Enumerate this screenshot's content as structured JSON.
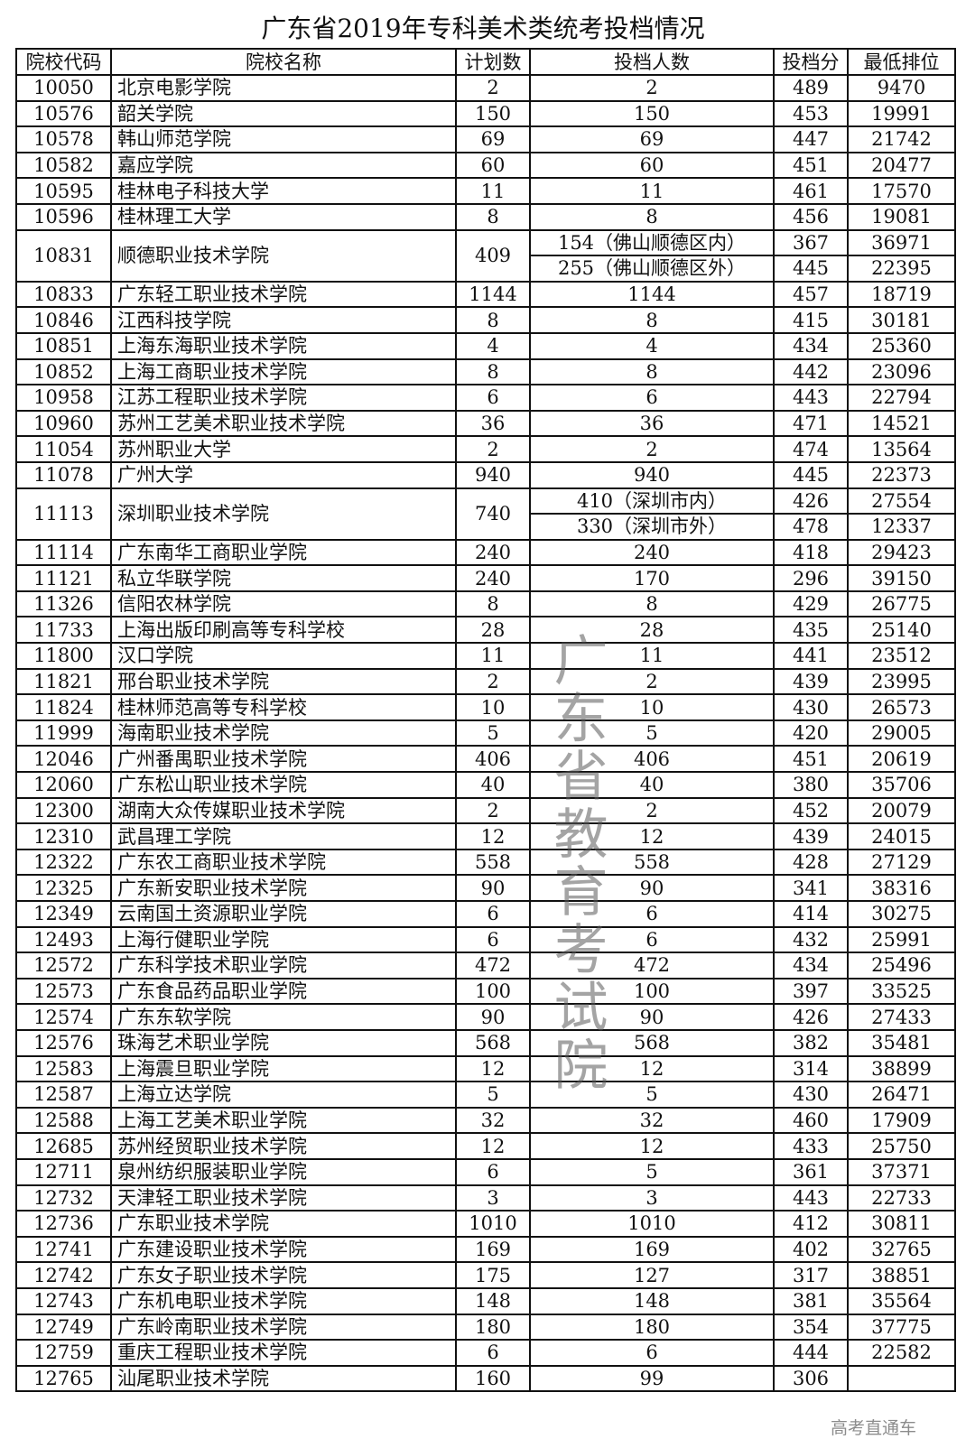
{
  "title": "广东省2019年专科美术类统考投档情况",
  "headers": [
    "院校代码",
    "院校名称",
    "计划数",
    "投档人数",
    "投档分",
    "最低排位"
  ],
  "rows": [
    {
      "code": "10050",
      "name": "北京电影学院",
      "plan": "2",
      "subs": [
        {
          "admit": "2",
          "score": "489",
          "rank": "9470"
        }
      ]
    },
    {
      "code": "10576",
      "name": "韶关学院",
      "plan": "150",
      "subs": [
        {
          "admit": "150",
          "score": "453",
          "rank": "19991"
        }
      ]
    },
    {
      "code": "10578",
      "name": "韩山师范学院",
      "plan": "69",
      "subs": [
        {
          "admit": "69",
          "score": "447",
          "rank": "21742"
        }
      ]
    },
    {
      "code": "10582",
      "name": "嘉应学院",
      "plan": "60",
      "subs": [
        {
          "admit": "60",
          "score": "451",
          "rank": "20477"
        }
      ]
    },
    {
      "code": "10595",
      "name": "桂林电子科技大学",
      "plan": "11",
      "subs": [
        {
          "admit": "11",
          "score": "461",
          "rank": "17570"
        }
      ]
    },
    {
      "code": "10596",
      "name": "桂林理工大学",
      "plan": "8",
      "subs": [
        {
          "admit": "8",
          "score": "456",
          "rank": "19081"
        }
      ]
    },
    {
      "code": "10831",
      "name": "顺德职业技术学院",
      "plan": "409",
      "subs": [
        {
          "admit": "154（佛山顺德区内）",
          "score": "367",
          "rank": "36971"
        },
        {
          "admit": "255（佛山顺德区外）",
          "score": "445",
          "rank": "22395"
        }
      ]
    },
    {
      "code": "10833",
      "name": "广东轻工职业技术学院",
      "plan": "1144",
      "subs": [
        {
          "admit": "1144",
          "score": "457",
          "rank": "18719"
        }
      ]
    },
    {
      "code": "10846",
      "name": "江西科技学院",
      "plan": "8",
      "subs": [
        {
          "admit": "8",
          "score": "415",
          "rank": "30181"
        }
      ]
    },
    {
      "code": "10851",
      "name": "上海东海职业技术学院",
      "plan": "4",
      "subs": [
        {
          "admit": "4",
          "score": "434",
          "rank": "25360"
        }
      ]
    },
    {
      "code": "10852",
      "name": "上海工商职业技术学院",
      "plan": "8",
      "subs": [
        {
          "admit": "8",
          "score": "442",
          "rank": "23096"
        }
      ]
    },
    {
      "code": "10958",
      "name": "江苏工程职业技术学院",
      "plan": "6",
      "subs": [
        {
          "admit": "6",
          "score": "443",
          "rank": "22794"
        }
      ]
    },
    {
      "code": "10960",
      "name": "苏州工艺美术职业技术学院",
      "plan": "36",
      "subs": [
        {
          "admit": "36",
          "score": "471",
          "rank": "14521"
        }
      ]
    },
    {
      "code": "11054",
      "name": "苏州职业大学",
      "plan": "2",
      "subs": [
        {
          "admit": "2",
          "score": "474",
          "rank": "13564"
        }
      ]
    },
    {
      "code": "11078",
      "name": "广州大学",
      "plan": "940",
      "subs": [
        {
          "admit": "940",
          "score": "445",
          "rank": "22373"
        }
      ]
    },
    {
      "code": "11113",
      "name": "深圳职业技术学院",
      "plan": "740",
      "subs": [
        {
          "admit": "410（深圳市内）",
          "score": "426",
          "rank": "27554"
        },
        {
          "admit": "330（深圳市外）",
          "score": "478",
          "rank": "12337"
        }
      ]
    },
    {
      "code": "11114",
      "name": "广东南华工商职业学院",
      "plan": "240",
      "subs": [
        {
          "admit": "240",
          "score": "418",
          "rank": "29423"
        }
      ]
    },
    {
      "code": "11121",
      "name": "私立华联学院",
      "plan": "240",
      "subs": [
        {
          "admit": "170",
          "score": "296",
          "rank": "39150"
        }
      ]
    },
    {
      "code": "11326",
      "name": "信阳农林学院",
      "plan": "8",
      "subs": [
        {
          "admit": "8",
          "score": "429",
          "rank": "26775"
        }
      ]
    },
    {
      "code": "11733",
      "name": "上海出版印刷高等专科学校",
      "plan": "28",
      "subs": [
        {
          "admit": "28",
          "score": "435",
          "rank": "25140"
        }
      ]
    },
    {
      "code": "11800",
      "name": "汉口学院",
      "plan": "11",
      "subs": [
        {
          "admit": "11",
          "score": "441",
          "rank": "23512"
        }
      ]
    },
    {
      "code": "11821",
      "name": "邢台职业技术学院",
      "plan": "2",
      "subs": [
        {
          "admit": "2",
          "score": "439",
          "rank": "23995"
        }
      ]
    },
    {
      "code": "11824",
      "name": "桂林师范高等专科学校",
      "plan": "10",
      "subs": [
        {
          "admit": "10",
          "score": "430",
          "rank": "26573"
        }
      ]
    },
    {
      "code": "11999",
      "name": "海南职业技术学院",
      "plan": "5",
      "subs": [
        {
          "admit": "5",
          "score": "420",
          "rank": "29005"
        }
      ]
    },
    {
      "code": "12046",
      "name": "广州番禺职业技术学院",
      "plan": "406",
      "subs": [
        {
          "admit": "406",
          "score": "451",
          "rank": "20619"
        }
      ]
    },
    {
      "code": "12060",
      "name": "广东松山职业技术学院",
      "plan": "40",
      "subs": [
        {
          "admit": "40",
          "score": "380",
          "rank": "35706"
        }
      ]
    },
    {
      "code": "12300",
      "name": "湖南大众传媒职业技术学院",
      "plan": "2",
      "subs": [
        {
          "admit": "2",
          "score": "452",
          "rank": "20079"
        }
      ]
    },
    {
      "code": "12310",
      "name": "武昌理工学院",
      "plan": "12",
      "subs": [
        {
          "admit": "12",
          "score": "439",
          "rank": "24015"
        }
      ]
    },
    {
      "code": "12322",
      "name": "广东农工商职业技术学院",
      "plan": "558",
      "subs": [
        {
          "admit": "558",
          "score": "428",
          "rank": "27129"
        }
      ]
    },
    {
      "code": "12325",
      "name": "广东新安职业技术学院",
      "plan": "90",
      "subs": [
        {
          "admit": "90",
          "score": "341",
          "rank": "38316"
        }
      ]
    },
    {
      "code": "12349",
      "name": "云南国土资源职业学院",
      "plan": "6",
      "subs": [
        {
          "admit": "6",
          "score": "414",
          "rank": "30275"
        }
      ]
    },
    {
      "code": "12493",
      "name": "上海行健职业学院",
      "plan": "6",
      "subs": [
        {
          "admit": "6",
          "score": "432",
          "rank": "25991"
        }
      ]
    },
    {
      "code": "12572",
      "name": "广东科学技术职业学院",
      "plan": "472",
      "subs": [
        {
          "admit": "472",
          "score": "434",
          "rank": "25496"
        }
      ]
    },
    {
      "code": "12573",
      "name": "广东食品药品职业学院",
      "plan": "100",
      "subs": [
        {
          "admit": "100",
          "score": "397",
          "rank": "33525"
        }
      ]
    },
    {
      "code": "12574",
      "name": "广东东软学院",
      "plan": "90",
      "subs": [
        {
          "admit": "90",
          "score": "426",
          "rank": "27433"
        }
      ]
    },
    {
      "code": "12576",
      "name": "珠海艺术职业学院",
      "plan": "568",
      "subs": [
        {
          "admit": "568",
          "score": "382",
          "rank": "35481"
        }
      ]
    },
    {
      "code": "12583",
      "name": "上海震旦职业学院",
      "plan": "12",
      "subs": [
        {
          "admit": "12",
          "score": "314",
          "rank": "38899"
        }
      ]
    },
    {
      "code": "12587",
      "name": "上海立达学院",
      "plan": "5",
      "subs": [
        {
          "admit": "5",
          "score": "430",
          "rank": "26471"
        }
      ]
    },
    {
      "code": "12588",
      "name": "上海工艺美术职业学院",
      "plan": "32",
      "subs": [
        {
          "admit": "32",
          "score": "460",
          "rank": "17909"
        }
      ]
    },
    {
      "code": "12685",
      "name": "苏州经贸职业技术学院",
      "plan": "12",
      "subs": [
        {
          "admit": "12",
          "score": "433",
          "rank": "25750"
        }
      ]
    },
    {
      "code": "12711",
      "name": "泉州纺织服装职业学院",
      "plan": "6",
      "subs": [
        {
          "admit": "5",
          "score": "361",
          "rank": "37371"
        }
      ]
    },
    {
      "code": "12732",
      "name": "天津轻工职业技术学院",
      "plan": "3",
      "subs": [
        {
          "admit": "3",
          "score": "443",
          "rank": "22733"
        }
      ]
    },
    {
      "code": "12736",
      "name": "广东职业技术学院",
      "plan": "1010",
      "subs": [
        {
          "admit": "1010",
          "score": "412",
          "rank": "30811"
        }
      ]
    },
    {
      "code": "12741",
      "name": "广东建设职业技术学院",
      "plan": "169",
      "subs": [
        {
          "admit": "169",
          "score": "402",
          "rank": "32765"
        }
      ]
    },
    {
      "code": "12742",
      "name": "广东女子职业技术学院",
      "plan": "175",
      "subs": [
        {
          "admit": "127",
          "score": "317",
          "rank": "38851"
        }
      ]
    },
    {
      "code": "12743",
      "name": "广东机电职业技术学院",
      "plan": "148",
      "subs": [
        {
          "admit": "148",
          "score": "381",
          "rank": "35564"
        }
      ]
    },
    {
      "code": "12749",
      "name": "广东岭南职业技术学院",
      "plan": "180",
      "subs": [
        {
          "admit": "180",
          "score": "354",
          "rank": "37775"
        }
      ]
    },
    {
      "code": "12759",
      "name": "重庆工程职业技术学院",
      "plan": "6",
      "subs": [
        {
          "admit": "6",
          "score": "444",
          "rank": "22582"
        }
      ]
    },
    {
      "code": "12765",
      "name": "汕尾职业技术学院",
      "plan": "160",
      "subs": [
        {
          "admit": "99",
          "score": "306",
          "rank": ""
        }
      ]
    }
  ],
  "watermark": "广东省教育考试院",
  "corner_watermark": "高考直通车"
}
